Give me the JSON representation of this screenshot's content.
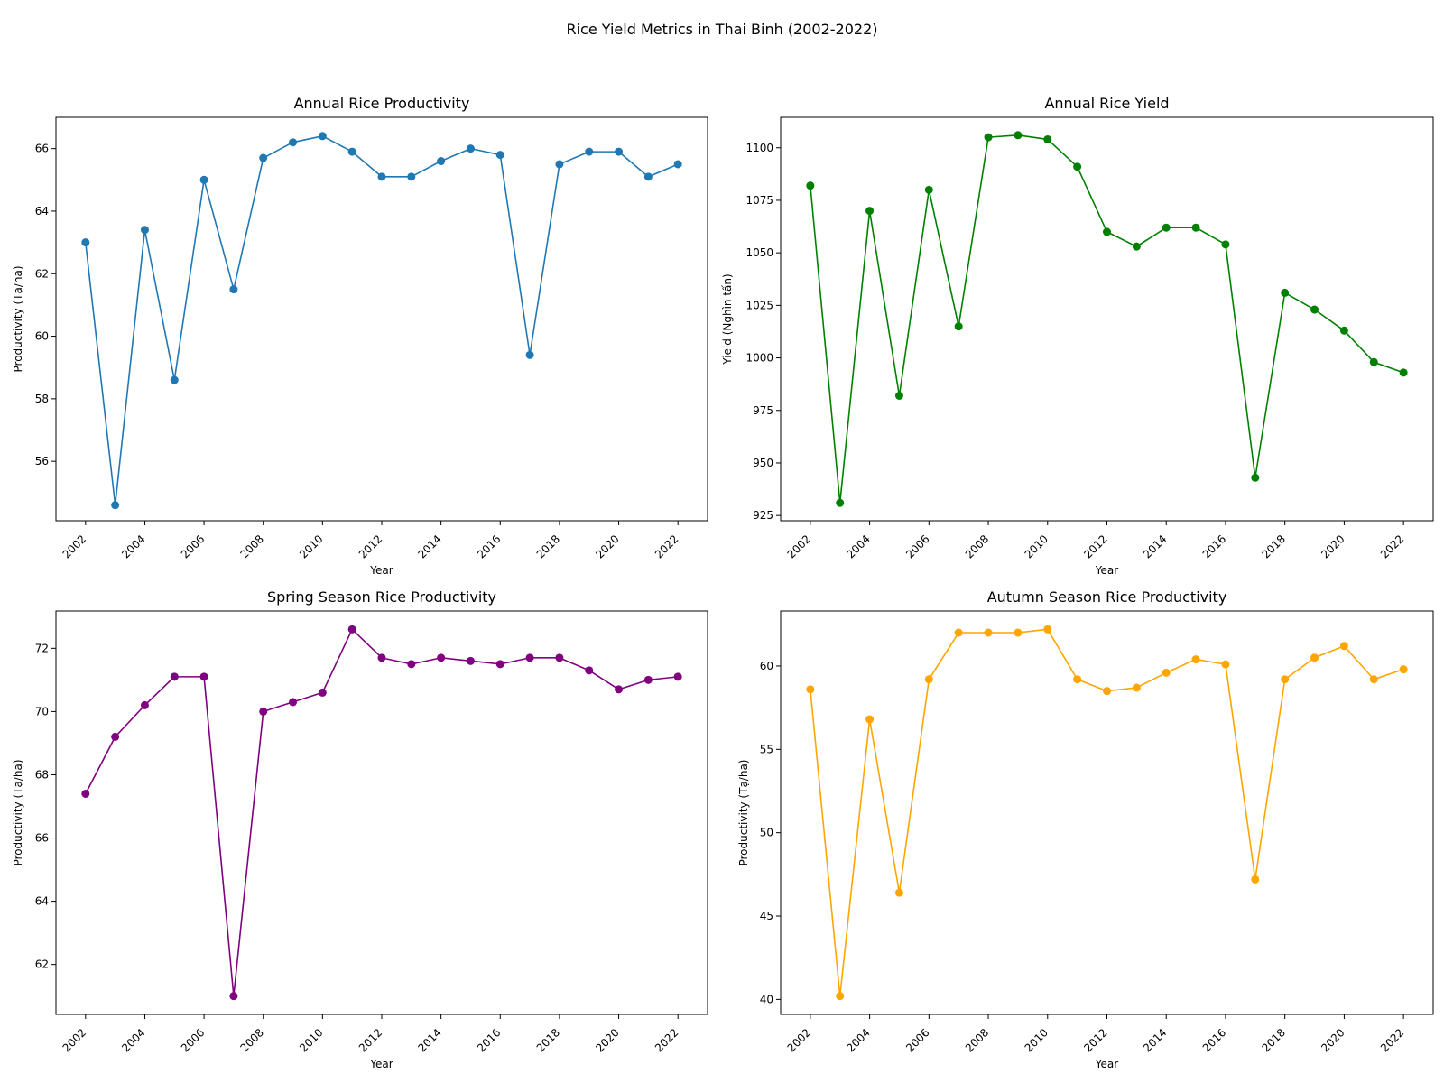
{
  "figure": {
    "title": "Rice Yield Metrics in Thai Binh (2002-2022)"
  },
  "chart_data": [
    {
      "type": "line",
      "title": "Annual Rice Productivity",
      "xlabel": "Year",
      "ylabel": "Productivity (Tạ/ha)",
      "color": "#1f77b4",
      "x": [
        2002,
        2003,
        2004,
        2005,
        2006,
        2007,
        2008,
        2009,
        2010,
        2011,
        2012,
        2013,
        2014,
        2015,
        2016,
        2017,
        2018,
        2019,
        2020,
        2021,
        2022
      ],
      "y": [
        63.0,
        54.6,
        63.4,
        58.6,
        65.0,
        61.5,
        65.7,
        66.2,
        66.4,
        65.9,
        65.1,
        65.1,
        65.6,
        66.0,
        65.8,
        59.4,
        65.5,
        65.9,
        65.9,
        65.1,
        65.5
      ],
      "xlim": [
        2001,
        2023
      ],
      "ylim": [
        54.1,
        67.0
      ],
      "xticks": [
        2002,
        2004,
        2006,
        2008,
        2010,
        2012,
        2014,
        2016,
        2018,
        2020,
        2022
      ],
      "yticks": [
        56,
        58,
        60,
        62,
        64,
        66
      ]
    },
    {
      "type": "line",
      "title": "Annual Rice Yield",
      "xlabel": "Year",
      "ylabel": "Yield (Nghìn tấn)",
      "color": "#008000",
      "x": [
        2002,
        2003,
        2004,
        2005,
        2006,
        2007,
        2008,
        2009,
        2010,
        2011,
        2012,
        2013,
        2014,
        2015,
        2016,
        2017,
        2018,
        2019,
        2020,
        2021,
        2022
      ],
      "y": [
        1082,
        931,
        1070,
        982,
        1080,
        1015,
        1105,
        1106,
        1104,
        1091,
        1060,
        1053,
        1062,
        1062,
        1054,
        943,
        1031,
        1023,
        1013,
        998,
        993
      ],
      "xlim": [
        2001,
        2023
      ],
      "ylim": [
        922.5,
        1114.5
      ],
      "xticks": [
        2002,
        2004,
        2006,
        2008,
        2010,
        2012,
        2014,
        2016,
        2018,
        2020,
        2022
      ],
      "yticks": [
        925,
        950,
        975,
        1000,
        1025,
        1050,
        1075,
        1100
      ]
    },
    {
      "type": "line",
      "title": "Spring Season Rice Productivity",
      "xlabel": "Year",
      "ylabel": "Productivity (Tạ/ha)",
      "color": "#800080",
      "x": [
        2002,
        2003,
        2004,
        2005,
        2006,
        2007,
        2008,
        2009,
        2010,
        2011,
        2012,
        2013,
        2014,
        2015,
        2016,
        2017,
        2018,
        2019,
        2020,
        2021,
        2022
      ],
      "y": [
        67.4,
        69.2,
        70.2,
        71.1,
        71.1,
        61.0,
        70.0,
        70.3,
        70.6,
        72.6,
        71.7,
        71.5,
        71.7,
        71.6,
        71.5,
        71.7,
        71.7,
        71.3,
        70.7,
        71.0,
        71.1
      ],
      "xlim": [
        2001,
        2023
      ],
      "ylim": [
        60.42,
        73.18
      ],
      "xticks": [
        2002,
        2004,
        2006,
        2008,
        2010,
        2012,
        2014,
        2016,
        2018,
        2020,
        2022
      ],
      "yticks": [
        62,
        64,
        66,
        68,
        70,
        72
      ]
    },
    {
      "type": "line",
      "title": "Autumn Season Rice Productivity",
      "xlabel": "Year",
      "ylabel": "Productivity (Tạ/ha)",
      "color": "#ffa500",
      "x": [
        2002,
        2003,
        2004,
        2005,
        2006,
        2007,
        2008,
        2009,
        2010,
        2011,
        2012,
        2013,
        2014,
        2015,
        2016,
        2017,
        2018,
        2019,
        2020,
        2021,
        2022
      ],
      "y": [
        58.6,
        40.2,
        56.8,
        46.4,
        59.2,
        62.0,
        62.0,
        62.0,
        62.2,
        59.2,
        58.5,
        58.7,
        59.6,
        60.4,
        60.1,
        47.2,
        59.2,
        60.5,
        61.2,
        59.2,
        59.8
      ],
      "xlim": [
        2001,
        2023
      ],
      "ylim": [
        39.1,
        63.3
      ],
      "xticks": [
        2002,
        2004,
        2006,
        2008,
        2010,
        2012,
        2014,
        2016,
        2018,
        2020,
        2022
      ],
      "yticks": [
        40,
        45,
        50,
        55,
        60
      ]
    }
  ]
}
